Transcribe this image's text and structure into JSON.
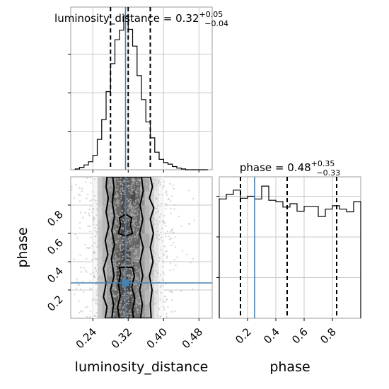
{
  "chart_data": [
    {
      "type": "histogram",
      "panel": "luminosity_distance-marginal",
      "title": {
        "param": "luminosity_distance",
        "median": "0.32",
        "plus": "+0.05",
        "minus": "−0.04"
      },
      "xlim": [
        0.19,
        0.51
      ],
      "bin_edges": [
        0.2,
        0.21,
        0.22,
        0.23,
        0.24,
        0.25,
        0.26,
        0.27,
        0.28,
        0.29,
        0.3,
        0.31,
        0.32,
        0.33,
        0.34,
        0.35,
        0.36,
        0.37,
        0.38,
        0.39,
        0.4,
        0.41,
        0.42,
        0.43,
        0.44,
        0.45,
        0.46,
        0.47,
        0.48,
        0.49,
        0.5
      ],
      "counts": [
        1,
        3,
        6,
        10,
        18,
        38,
        63,
        98,
        133,
        163,
        175,
        193,
        176,
        155,
        118,
        88,
        60,
        40,
        22,
        13,
        9,
        7,
        4,
        2,
        1,
        0,
        0,
        0,
        0,
        0
      ],
      "quantiles": [
        0.28,
        0.32,
        0.37
      ],
      "truth": 0.314,
      "grid": true
    },
    {
      "type": "histogram",
      "panel": "phase-marginal",
      "title": {
        "param": "phase",
        "median": "0.48",
        "plus": "+0.35",
        "minus": "−0.33"
      },
      "xlim": [
        0.0,
        1.0
      ],
      "bin_edges": [
        0.0,
        0.05,
        0.1,
        0.15,
        0.2,
        0.25,
        0.3,
        0.35,
        0.4,
        0.45,
        0.5,
        0.55,
        0.6,
        0.65,
        0.7,
        0.75,
        0.8,
        0.85,
        0.9,
        0.95,
        1.0
      ],
      "counts": [
        176,
        183,
        189,
        177,
        180,
        176,
        195,
        174,
        172,
        164,
        169,
        158,
        165,
        165,
        150,
        161,
        166,
        161,
        157,
        172
      ],
      "quantiles": [
        0.15,
        0.48,
        0.83
      ],
      "truth": 0.25,
      "grid": true
    },
    {
      "type": "scatter_contour",
      "panel": "joint",
      "xlabel": "luminosity_distance",
      "ylabel": "phase",
      "xlim": [
        0.19,
        0.51
      ],
      "ylim": [
        0.0,
        1.0
      ],
      "xticks": [
        0.24,
        0.32,
        0.4,
        0.48
      ],
      "yticks": [
        0.2,
        0.4,
        0.6,
        0.8
      ],
      "density_profile": [
        0.05,
        0.3,
        0.4,
        0.6,
        0.8,
        0.95,
        1.0,
        1.0,
        0.9,
        0.8,
        0.6,
        0.45,
        0.3,
        0.15,
        0.05
      ],
      "contours": [
        {
          "level": "outer",
          "points": [
            [
              0.268,
              0.0
            ],
            [
              0.272,
              0.08
            ],
            [
              0.264,
              0.15
            ],
            [
              0.27,
              0.25
            ],
            [
              0.264,
              0.35
            ],
            [
              0.274,
              0.45
            ],
            [
              0.268,
              0.55
            ],
            [
              0.276,
              0.65
            ],
            [
              0.27,
              0.75
            ],
            [
              0.275,
              0.85
            ],
            [
              0.27,
              0.93
            ],
            [
              0.272,
              1.0
            ],
            [
              0.37,
              1.0
            ],
            [
              0.375,
              0.93
            ],
            [
              0.368,
              0.85
            ],
            [
              0.378,
              0.78
            ],
            [
              0.37,
              0.7
            ],
            [
              0.377,
              0.6
            ],
            [
              0.37,
              0.5
            ],
            [
              0.376,
              0.4
            ],
            [
              0.368,
              0.3
            ],
            [
              0.374,
              0.2
            ],
            [
              0.37,
              0.1
            ],
            [
              0.372,
              0.0
            ]
          ]
        },
        {
          "level": "middle",
          "points": [
            [
              0.283,
              0.0
            ],
            [
              0.287,
              0.1
            ],
            [
              0.28,
              0.2
            ],
            [
              0.288,
              0.3
            ],
            [
              0.282,
              0.42
            ],
            [
              0.289,
              0.52
            ],
            [
              0.283,
              0.62
            ],
            [
              0.289,
              0.72
            ],
            [
              0.284,
              0.82
            ],
            [
              0.288,
              0.92
            ],
            [
              0.285,
              1.0
            ],
            [
              0.35,
              1.0
            ],
            [
              0.354,
              0.9
            ],
            [
              0.347,
              0.8
            ],
            [
              0.353,
              0.7
            ],
            [
              0.346,
              0.6
            ],
            [
              0.354,
              0.5
            ],
            [
              0.347,
              0.4
            ],
            [
              0.353,
              0.3
            ],
            [
              0.346,
              0.2
            ],
            [
              0.352,
              0.1
            ],
            [
              0.348,
              0.0
            ]
          ]
        },
        {
          "level": "inner-low",
          "points": [
            [
              0.3,
              0.0
            ],
            [
              0.296,
              0.08
            ],
            [
              0.302,
              0.16
            ],
            [
              0.298,
              0.24
            ],
            [
              0.303,
              0.32
            ],
            [
              0.3,
              0.36
            ],
            [
              0.33,
              0.36
            ],
            [
              0.334,
              0.3
            ],
            [
              0.328,
              0.22
            ],
            [
              0.335,
              0.14
            ],
            [
              0.33,
              0.06
            ],
            [
              0.332,
              0.0
            ]
          ]
        },
        {
          "level": "inner-high",
          "points": [
            [
              0.298,
              0.6
            ],
            [
              0.303,
              0.66
            ],
            [
              0.3,
              0.71
            ],
            [
              0.314,
              0.735
            ],
            [
              0.328,
              0.71
            ],
            [
              0.325,
              0.66
            ],
            [
              0.33,
              0.6
            ],
            [
              0.315,
              0.58
            ]
          ]
        }
      ],
      "truth": {
        "luminosity_distance": 0.314,
        "phase": 0.25
      },
      "grid": true
    }
  ]
}
